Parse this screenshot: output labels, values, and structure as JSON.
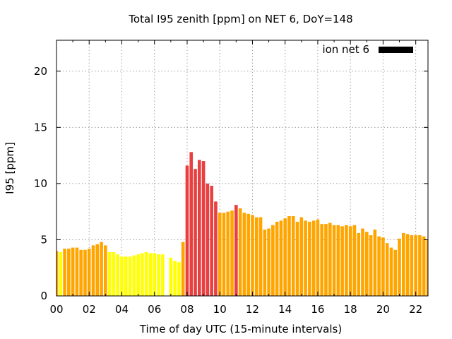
{
  "chart_data": {
    "type": "bar",
    "title": "Total I95 zenith [ppm] on NET 6, DoY=148",
    "xlabel": "Time of day UTC (15-minute intervals)",
    "ylabel": "I95 [ppm]",
    "xlim": [
      0,
      22.75
    ],
    "ylim": [
      0,
      22.75
    ],
    "x_ticks": [
      "00",
      "02",
      "04",
      "06",
      "08",
      "10",
      "12",
      "14",
      "16",
      "18",
      "20",
      "22"
    ],
    "y_ticks": [
      0,
      5,
      10,
      15,
      20
    ],
    "grid": true,
    "legend": {
      "label": "ion net 6",
      "placement": "top-right",
      "color": "#000000"
    },
    "bar_width_hours": 0.2,
    "level_colors": {
      "low": "#ffff00",
      "medium": "#ffa500",
      "high": "#e84040"
    },
    "series": [
      {
        "x": [
          0.0,
          0.25,
          0.5,
          0.75,
          1.0,
          1.25,
          1.5,
          1.75,
          2.0,
          2.25,
          2.5,
          2.75,
          3.0,
          3.25,
          3.5,
          3.75,
          4.0,
          4.25,
          4.5,
          4.75,
          5.0,
          5.25,
          5.5,
          5.75,
          6.0,
          6.25,
          6.5,
          6.75,
          7.0,
          7.25,
          7.5,
          7.75,
          8.0,
          8.25,
          8.5,
          8.75,
          9.0,
          9.25,
          9.5,
          9.75,
          10.0,
          10.25,
          10.5,
          10.75,
          11.0,
          11.25,
          11.5,
          11.75,
          12.0,
          12.25,
          12.5,
          12.75,
          13.0,
          13.25,
          13.5,
          13.75,
          14.0,
          14.25,
          14.5,
          14.75,
          15.0,
          15.25,
          15.5,
          15.75,
          16.0,
          16.25,
          16.5,
          16.75,
          17.0,
          17.25,
          17.5,
          17.75,
          18.0,
          18.25,
          18.5,
          18.75,
          19.0,
          19.25,
          19.5,
          19.75,
          20.0,
          20.25,
          20.5,
          20.75,
          21.0,
          21.25,
          21.5,
          21.75,
          22.0,
          22.25,
          22.5,
          22.75
        ],
        "values": [
          4.0,
          3.9,
          4.2,
          4.2,
          4.3,
          4.3,
          4.1,
          4.1,
          4.2,
          4.5,
          4.6,
          4.8,
          4.5,
          3.9,
          3.9,
          3.7,
          3.5,
          3.5,
          3.5,
          3.6,
          3.7,
          3.8,
          3.9,
          3.8,
          3.8,
          3.7,
          3.7,
          null,
          3.4,
          3.1,
          3.0,
          4.8,
          11.6,
          12.8,
          11.3,
          12.1,
          12.0,
          10.0,
          9.8,
          8.4,
          7.4,
          7.4,
          7.5,
          7.6,
          8.1,
          7.8,
          7.4,
          7.3,
          7.2,
          7.0,
          7.0,
          5.9,
          6.0,
          6.3,
          6.6,
          6.7,
          6.9,
          7.1,
          7.1,
          6.6,
          7.0,
          6.7,
          6.6,
          6.7,
          6.8,
          6.4,
          6.4,
          6.5,
          6.3,
          6.3,
          6.2,
          6.3,
          6.2,
          6.3,
          5.6,
          6.0,
          5.7,
          5.4,
          5.9,
          5.3,
          5.2,
          4.7,
          4.3,
          4.1,
          5.1,
          5.6,
          5.5,
          5.4,
          5.4,
          5.4,
          5.3,
          5.0
        ],
        "levels": [
          "medium",
          "yellow",
          "medium",
          "medium",
          "medium",
          "medium",
          "medium",
          "medium",
          "medium",
          "medium",
          "medium",
          "medium",
          "medium",
          "yellow",
          "yellow",
          "yellow",
          "yellow",
          "yellow",
          "yellow",
          "yellow",
          "yellow",
          "yellow",
          "yellow",
          "yellow",
          "yellow",
          "yellow",
          "yellow",
          "yellow",
          "yellow",
          "yellow",
          "yellow",
          "medium",
          "high",
          "high",
          "high",
          "high",
          "high",
          "high",
          "high",
          "high",
          "medium",
          "medium",
          "medium",
          "medium",
          "high",
          "medium",
          "medium",
          "medium",
          "medium",
          "medium",
          "medium",
          "medium",
          "medium",
          "medium",
          "medium",
          "medium",
          "medium",
          "medium",
          "medium",
          "medium",
          "medium",
          "medium",
          "medium",
          "medium",
          "medium",
          "medium",
          "medium",
          "medium",
          "medium",
          "medium",
          "medium",
          "medium",
          "medium",
          "medium",
          "medium",
          "medium",
          "medium",
          "medium",
          "medium",
          "medium",
          "medium",
          "medium",
          "medium",
          "medium",
          "medium",
          "medium",
          "medium",
          "medium",
          "medium",
          "medium",
          "medium",
          "medium"
        ]
      }
    ]
  }
}
